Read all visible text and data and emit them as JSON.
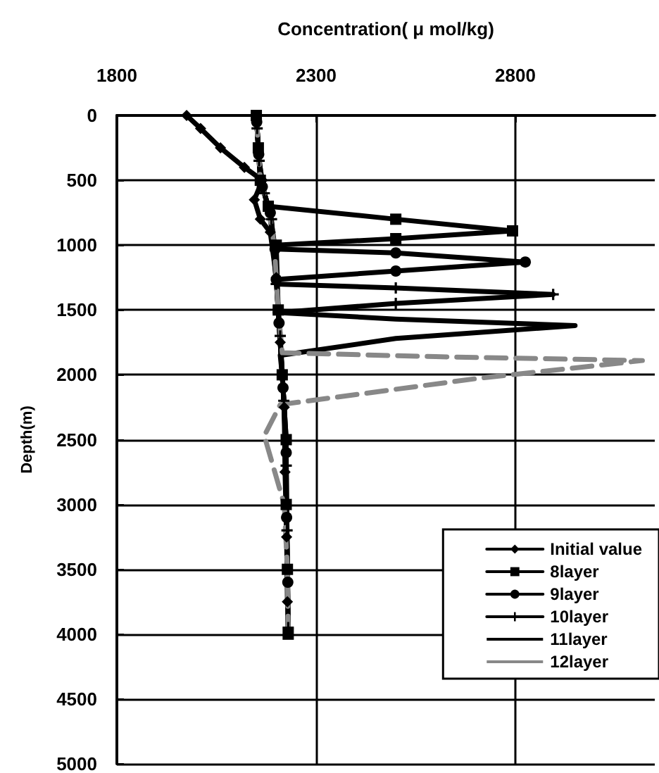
{
  "chart_data": {
    "type": "line",
    "xlabel": "Concentration( μ mol/kg)",
    "ylabel": "Depth(m)",
    "xlim": [
      1800,
      3150
    ],
    "xticks": [
      1800,
      2300,
      2800
    ],
    "ylim": [
      5000,
      0
    ],
    "yticks": [
      0,
      500,
      1000,
      1500,
      2000,
      2500,
      3000,
      3500,
      4000,
      4500,
      5000
    ],
    "grid": true,
    "legend": "bottom right",
    "series": [
      {
        "name": "Initial value",
        "color": "#000000",
        "marker": "diamond",
        "x": [
          1975,
          2010,
          2060,
          2120,
          2165,
          2145,
          2160,
          2185,
          2200,
          2210,
          2220,
          2222,
          2226,
          2228
        ],
        "values": [
          0,
          100,
          250,
          400,
          500,
          650,
          800,
          900,
          1250,
          1750,
          2250,
          2750,
          3250,
          3750
        ]
      },
      {
        "name": "8layer",
        "color": "#000000",
        "marker": "square",
        "x": [
          2150,
          2155,
          2160,
          2180,
          2500,
          2793,
          2500,
          2200,
          2205,
          2215,
          2225,
          2225,
          2228,
          2230
        ],
        "values": [
          0,
          250,
          500,
          700,
          800,
          890,
          950,
          1000,
          1500,
          2000,
          2500,
          3000,
          3500,
          4000
        ]
      },
      {
        "name": "9layer",
        "color": "#000000",
        "marker": "circle",
        "x": [
          2151,
          2156,
          2165,
          2185,
          2197,
          2500,
          2825,
          2500,
          2200,
          2207,
          2217,
          2225,
          2226,
          2229
        ],
        "values": [
          50,
          300,
          550,
          750,
          1030,
          1060,
          1130,
          1200,
          1265,
          1600,
          2100,
          2600,
          3100,
          3600
        ]
      },
      {
        "name": "10layer",
        "color": "#000000",
        "marker": "cross",
        "x": [
          2152,
          2157,
          2170,
          2188,
          2200,
          2500,
          2895,
          2500,
          2205,
          2210,
          2219,
          2225,
          2227,
          2230
        ],
        "values": [
          100,
          350,
          600,
          800,
          1300,
          1330,
          1380,
          1450,
          1520,
          1700,
          2200,
          2700,
          3200,
          3950
        ]
      },
      {
        "name": "11layer",
        "color": "#000000",
        "marker": "none",
        "x": [
          2150,
          2155,
          2160,
          2180,
          2195,
          2205,
          2500,
          2950,
          2500,
          2210,
          2215,
          2225,
          2225,
          2228,
          2230
        ],
        "values": [
          0,
          250,
          500,
          700,
          1000,
          1520,
          1570,
          1620,
          1720,
          1850,
          2000,
          2500,
          3000,
          3500,
          4000
        ]
      },
      {
        "name": "12layer",
        "color": "#888888",
        "marker": "none",
        "line_style": "dashed",
        "x": [
          2150,
          2155,
          2160,
          2180,
          2195,
          2205,
          2215,
          2600,
          3119,
          2700,
          2210,
          2170,
          2220,
          2228,
          2230
        ],
        "values": [
          0,
          250,
          500,
          700,
          1000,
          1500,
          1830,
          1860,
          1890,
          2030,
          2230,
          2470,
          3000,
          3500,
          4000
        ]
      }
    ]
  }
}
